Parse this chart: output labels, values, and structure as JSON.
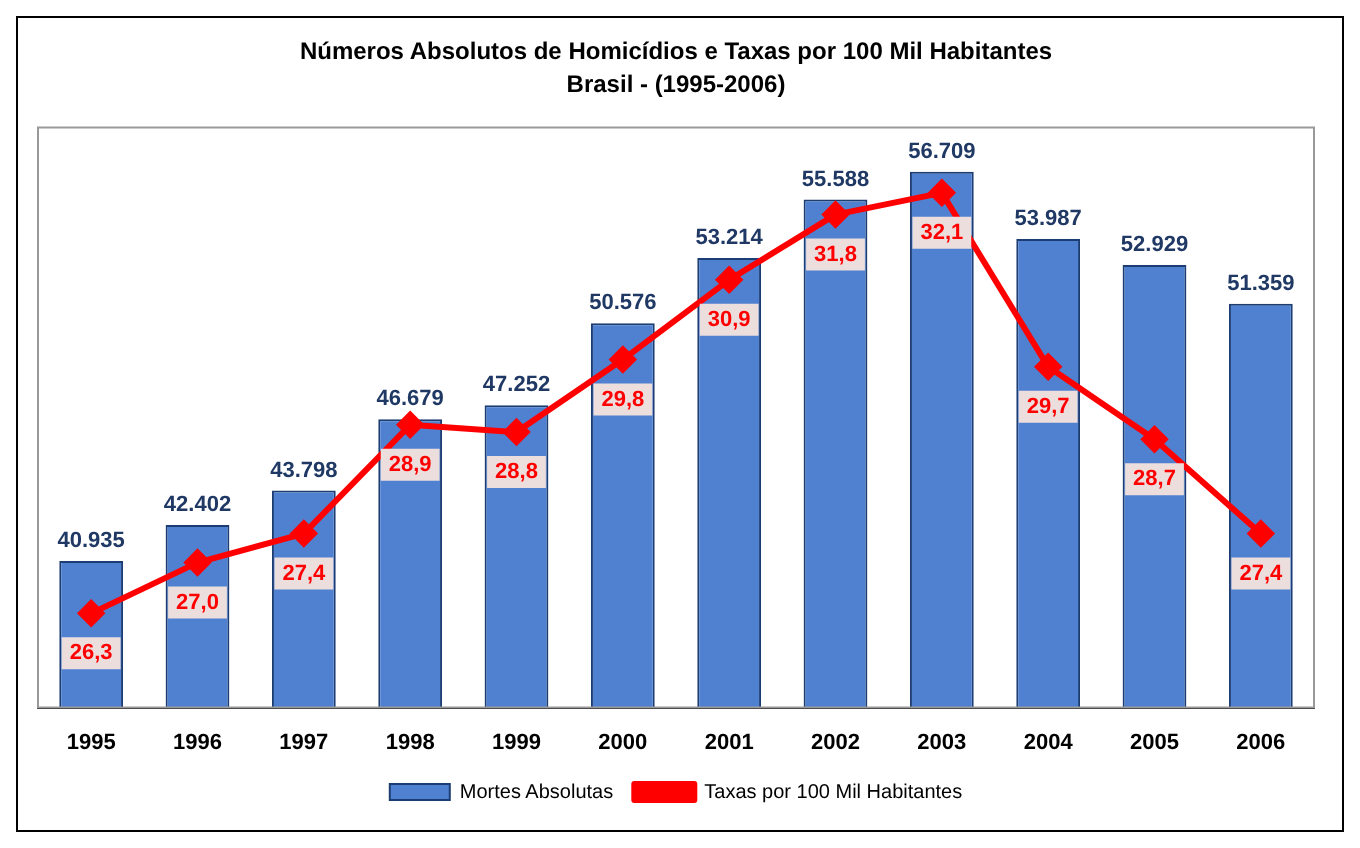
{
  "chart_data": {
    "type": "bar",
    "title": "Números Absolutos de Homicídios e Taxas por 100 Mil Habitantes",
    "subtitle": "Brasil - (1995-2006)",
    "categories": [
      "1995",
      "1996",
      "1997",
      "1998",
      "1999",
      "2000",
      "2001",
      "2002",
      "2003",
      "2004",
      "2005",
      "2006"
    ],
    "series": [
      {
        "name": "Mortes Absolutas",
        "color": "#4f81d0",
        "values": [
          40935,
          42402,
          43798,
          46679,
          47252,
          50576,
          53214,
          55588,
          56709,
          53987,
          52929,
          51359
        ],
        "value_labels": [
          "40.935",
          "42.402",
          "43.798",
          "46.679",
          "47.252",
          "50.576",
          "53.214",
          "55.588",
          "56.709",
          "53.987",
          "52.929",
          "51.359"
        ]
      },
      {
        "name": "Taxas por 100 Mil Habitantes",
        "type": "line",
        "axis": "y2",
        "color": "#ff0000",
        "values": [
          26.3,
          27.0,
          27.4,
          28.9,
          28.8,
          29.8,
          30.9,
          31.8,
          32.1,
          29.7,
          28.7,
          27.4
        ],
        "value_labels": [
          "26,3",
          "27,0",
          "27,4",
          "28,9",
          "28,8",
          "29,8",
          "30,9",
          "31,8",
          "32,1",
          "29,7",
          "28,7",
          "27,4"
        ]
      }
    ],
    "ylim": [
      35000,
      58500
    ],
    "y2lim": [
      25,
      33
    ],
    "tick_labels": "x",
    "grid": false,
    "legend": "bottom",
    "marker": "diamond",
    "line_style": "solid"
  }
}
